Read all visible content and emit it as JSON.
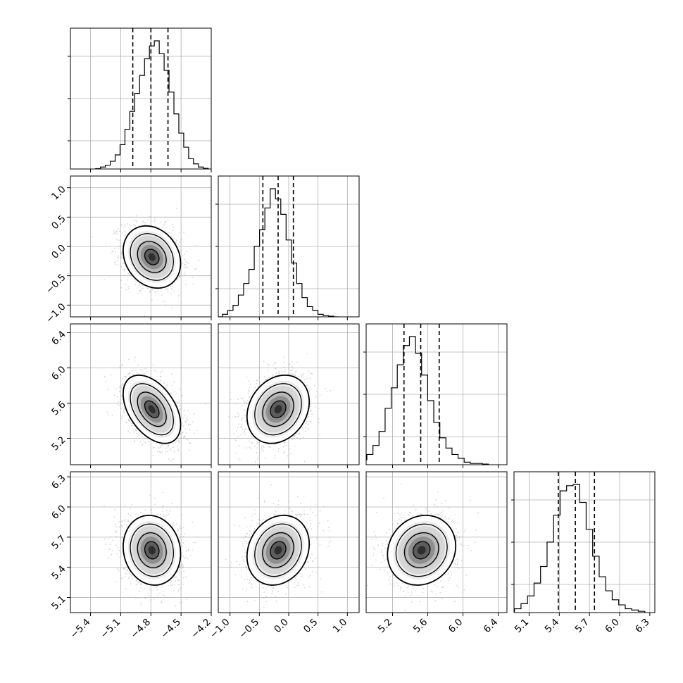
{
  "chart_data": {
    "type": "corner",
    "n_params": 4,
    "parameters": [
      {
        "range": [
          -5.6,
          -4.2
        ],
        "ticks": [
          -5.4,
          -5.1,
          -4.8,
          -4.5,
          -4.2
        ],
        "tick_labels": [
          "−5.4",
          "−5.1",
          "−4.8",
          "−4.5",
          "−4.2"
        ],
        "quantiles": [
          -4.98,
          -4.8,
          -4.63
        ],
        "mean": -4.79,
        "sd": 0.14,
        "bin_heights": [
          0.003,
          0.015,
          0.03,
          0.06,
          0.11,
          0.19,
          0.31,
          0.45,
          0.59,
          0.73,
          0.86,
          0.96,
          1.0,
          0.9,
          0.77,
          0.6,
          0.43,
          0.28,
          0.17,
          0.08,
          0.04,
          0.015,
          0.005
        ]
      },
      {
        "range": [
          -1.2,
          1.2
        ],
        "ticks": [
          -1.0,
          -0.5,
          0.0,
          0.5,
          1.0
        ],
        "tick_labels": [
          "−1.0",
          "−0.5",
          "0.0",
          "0.5",
          "1.0"
        ],
        "quantiles": [
          -0.44,
          -0.18,
          0.08
        ],
        "mean": -0.18,
        "sd": 0.26,
        "bin_heights": [
          0.0,
          0.02,
          0.05,
          0.09,
          0.17,
          0.26,
          0.37,
          0.55,
          0.68,
          0.85,
          1.0,
          0.92,
          0.8,
          0.6,
          0.42,
          0.26,
          0.15,
          0.08,
          0.05,
          0.02,
          0.01,
          0.005,
          0.0
        ]
      },
      {
        "range": [
          4.9,
          6.5
        ],
        "ticks": [
          5.2,
          5.6,
          6.0,
          6.4
        ],
        "tick_labels": [
          "5.2",
          "5.6",
          "6.0",
          "6.4"
        ],
        "quantiles": [
          5.33,
          5.52,
          5.73
        ],
        "mean": 5.53,
        "sd": 0.19,
        "bin_heights": [
          0.02,
          0.04,
          0.08,
          0.15,
          0.26,
          0.44,
          0.6,
          0.78,
          0.93,
          1.0,
          0.87,
          0.7,
          0.5,
          0.33,
          0.21,
          0.13,
          0.08,
          0.05,
          0.02,
          0.01,
          0.01,
          0.005
        ]
      },
      {
        "range": [
          4.95,
          6.35
        ],
        "ticks": [
          5.1,
          5.4,
          5.7,
          6.0,
          6.3
        ],
        "tick_labels": [
          "5.1",
          "5.4",
          "5.7",
          "6.0",
          "6.3"
        ],
        "quantiles": [
          5.39,
          5.56,
          5.75
        ],
        "mean": 5.57,
        "sd": 0.17,
        "bin_heights": [
          0.01,
          0.03,
          0.07,
          0.13,
          0.23,
          0.36,
          0.55,
          0.76,
          0.95,
          0.99,
          1.0,
          0.86,
          0.65,
          0.44,
          0.28,
          0.17,
          0.1,
          0.06,
          0.03,
          0.02,
          0.01
        ]
      }
    ],
    "correlations": [
      {
        "pair": [
          1,
          0
        ],
        "rho": -0.2
      },
      {
        "pair": [
          2,
          0
        ],
        "rho": -0.45
      },
      {
        "pair": [
          2,
          1
        ],
        "rho": 0.22
      },
      {
        "pair": [
          3,
          0
        ],
        "rho": -0.1
      },
      {
        "pair": [
          3,
          1
        ],
        "rho": 0.18
      },
      {
        "pair": [
          3,
          2
        ],
        "rho": 0.12
      }
    ],
    "contour_levels_sigma": [
      0.5,
      1.0,
      1.5,
      2.0
    ],
    "title": "",
    "axis_labels": [],
    "grid": true,
    "legend": "none"
  }
}
